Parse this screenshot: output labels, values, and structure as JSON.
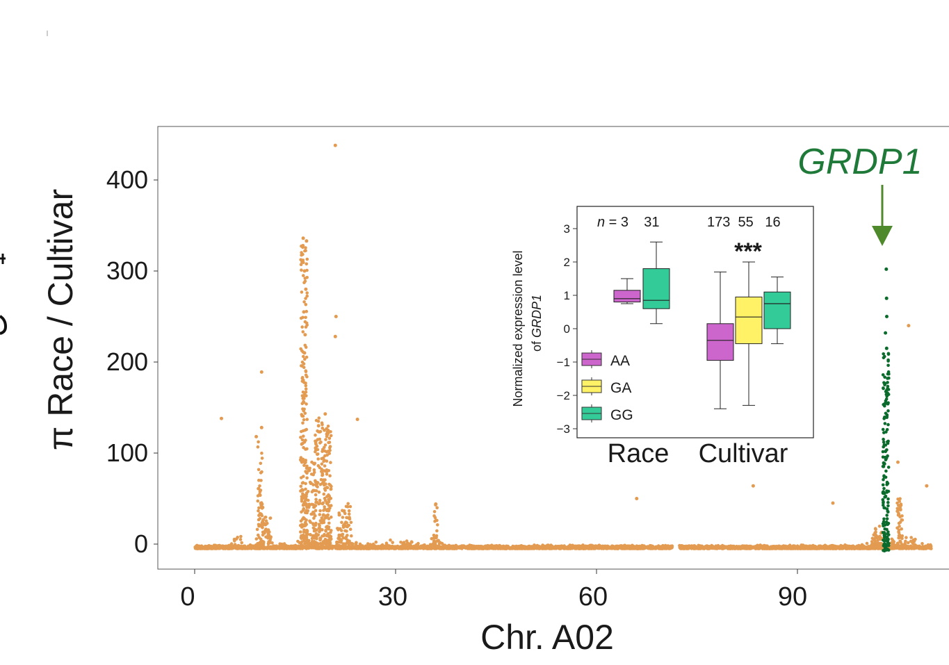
{
  "colors": {
    "background_dots": "#E39B52",
    "highlight_dots": "#0B6B2C",
    "gene_label": "#1F7A3A",
    "arrow": "#4E8A2C",
    "AA": "#CC66CC",
    "GA": "#FFF266",
    "GG": "#33CC99"
  },
  "main": {
    "ylabel": "π Race / Cultivar",
    "xlabel": "Chr. A02",
    "x_ticks": [
      "0",
      "30",
      "60",
      "90"
    ],
    "y_ticks": [
      "0",
      "100",
      "200",
      "300",
      "400"
    ],
    "gene_label": "GRDP1"
  },
  "inset": {
    "ylabel_line1": "Normalized expression level",
    "ylabel_line2_prefix": "of ",
    "ylabel_line2_gene": "GRDP1",
    "y_ticks": [
      "3",
      "2",
      "1",
      "0",
      "−1",
      "−2",
      "−3"
    ],
    "n_prefix": "n",
    "n_race": " = 3    31",
    "n_cultivar": "173  55   16",
    "significance": "***",
    "group_labels": [
      "Race",
      "Cultivar"
    ],
    "legend": [
      "AA",
      "GA",
      "GG"
    ]
  },
  "chart_data": [
    {
      "type": "scatter",
      "xlabel": "Chr. A02",
      "ylabel": "π Race / Cultivar",
      "xlim": [
        -2,
        114
      ],
      "ylim": [
        -28,
        460
      ],
      "x_ticks": [
        0,
        30,
        60,
        90
      ],
      "y_ticks": [
        0,
        100,
        200,
        300,
        400
      ],
      "annotation": "GRDP1",
      "annotation_x": 103.2,
      "grid": false,
      "series": [
        {
          "color": "#E39B52",
          "peaks": [
            {
              "x": 16.2,
              "y": 336
            },
            {
              "x": 16.7,
              "y": 333
            },
            {
              "x": 16.4,
              "y": 300
            },
            {
              "x": 16.6,
              "y": 280
            },
            {
              "x": 16.3,
              "y": 255
            },
            {
              "x": 16.5,
              "y": 230
            },
            {
              "x": 16.4,
              "y": 210
            },
            {
              "x": 16.2,
              "y": 180
            },
            {
              "x": 21.0,
              "y": 438
            },
            {
              "x": 21.1,
              "y": 250
            },
            {
              "x": 21.0,
              "y": 228
            },
            {
              "x": 19.5,
              "y": 143
            },
            {
              "x": 18.5,
              "y": 130
            },
            {
              "x": 19.8,
              "y": 120
            },
            {
              "x": 10.0,
              "y": 189
            },
            {
              "x": 10.0,
              "y": 128
            },
            {
              "x": 9.2,
              "y": 118
            },
            {
              "x": 4.0,
              "y": 138
            },
            {
              "x": 24.3,
              "y": 137
            },
            {
              "x": 36.0,
              "y": 44
            },
            {
              "x": 66.0,
              "y": 50
            },
            {
              "x": 83.4,
              "y": 64
            },
            {
              "x": 95.3,
              "y": 45
            },
            {
              "x": 106.6,
              "y": 240
            },
            {
              "x": 109.3,
              "y": 64
            },
            {
              "x": 105.0,
              "y": 90
            }
          ],
          "baseline_range": [
            0,
            110
          ]
        },
        {
          "color": "#0B6B2C",
          "x_center": 103.2,
          "y_max": 302,
          "label": "GRDP1"
        }
      ]
    },
    {
      "type": "box",
      "ylabel": "Normalized expression level of GRDP1",
      "ylim": [
        -3.2,
        3.5
      ],
      "y_ticks": [
        3,
        2,
        1,
        0,
        -1,
        -2,
        -3
      ],
      "categories": [
        "Race",
        "Cultivar"
      ],
      "significance": "***",
      "boxes": [
        {
          "group": "Race",
          "genotype": "AA",
          "n": 3,
          "min": 0.75,
          "q1": 0.8,
          "median": 0.9,
          "q3": 1.15,
          "max": 1.5
        },
        {
          "group": "Race",
          "genotype": "GG",
          "n": 31,
          "min": 0.15,
          "q1": 0.6,
          "median": 0.85,
          "q3": 1.8,
          "max": 2.6
        },
        {
          "group": "Cultivar",
          "genotype": "AA",
          "n": 173,
          "min": -2.4,
          "q1": -0.95,
          "median": -0.35,
          "q3": 0.15,
          "max": 1.7
        },
        {
          "group": "Cultivar",
          "genotype": "GA",
          "n": 55,
          "min": -2.3,
          "q1": -0.45,
          "median": 0.35,
          "q3": 0.95,
          "max": 2.0
        },
        {
          "group": "Cultivar",
          "genotype": "GG",
          "n": 16,
          "min": -0.45,
          "q1": 0.0,
          "median": 0.75,
          "q3": 1.1,
          "max": 1.55
        }
      ]
    }
  ]
}
